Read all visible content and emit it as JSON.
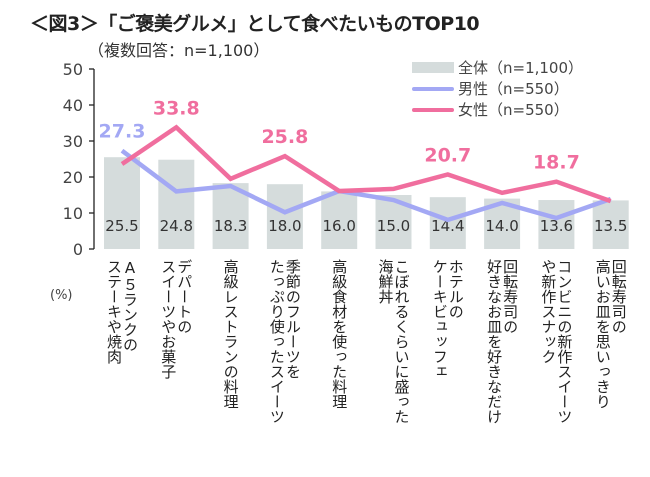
{
  "chart_data": {
    "type": "bar",
    "title": "＜図3＞「ご褒美グルメ」として食べたいものTOP10",
    "subtitle": "（複数回答：n=1,100）",
    "ylabel": "(%)",
    "xlabel": "",
    "ylim": [
      0,
      50
    ],
    "yticks": [
      0,
      10,
      20,
      30,
      40,
      50
    ],
    "grid": false,
    "legend_position": "top-right",
    "categories": [
      "A５ランクのステーキや焼肉",
      "デパートのスイーツやお菓子",
      "高級レストランの料理",
      "季節のフルーツをたっぷり使ったスイーツ",
      "高級食材を使った料理",
      "こぼれるくらいに盛った海鮮丼",
      "ホテルのケーキビュッフェ",
      "回転寿司の好きなお皿を好きなだけ",
      "コンビニの新作スイーツや新作スナック",
      "回転寿司の高いお皿を思いっきり"
    ],
    "category_lines": [
      [
        "A５ランクの",
        "ステーキや焼肉"
      ],
      [
        "デパートの",
        "スイーツやお菓子"
      ],
      [
        "高級レストランの料理"
      ],
      [
        "季節のフルーツを",
        "たっぷり使ったスイーツ"
      ],
      [
        "高級食材を使った料理"
      ],
      [
        "こぼれるくらいに盛った",
        "海鮮丼"
      ],
      [
        "ホテルの",
        "ケーキビュッフェ"
      ],
      [
        "回転寿司の",
        "好きなお皿を好きなだけ"
      ],
      [
        "コンビニの新作スイーツ",
        "や新作スナック"
      ],
      [
        "回転寿司の",
        "高いお皿を思いっきり"
      ]
    ],
    "series": [
      {
        "name": "全体（n=1,100）",
        "type": "bar",
        "color": "#d5dcdc",
        "values": [
          25.5,
          24.8,
          18.3,
          18.0,
          16.0,
          15.0,
          14.4,
          14.0,
          13.6,
          13.5
        ],
        "labels": [
          "25.5",
          "24.8",
          "18.3",
          "18.0",
          "16.0",
          "15.0",
          "14.4",
          "14.0",
          "13.6",
          "13.5"
        ]
      },
      {
        "name": "男性（n=550）",
        "type": "line",
        "color": "#a3a8f4",
        "values": [
          27.3,
          16.0,
          17.5,
          10.2,
          16.1,
          13.6,
          8.1,
          12.8,
          8.6,
          13.9
        ],
        "annotations": [
          {
            "index": 0,
            "text": "27.3"
          }
        ]
      },
      {
        "name": "女性（n=550）",
        "type": "line",
        "color": "#f06e9e",
        "values": [
          23.6,
          33.8,
          19.5,
          25.8,
          16.1,
          16.7,
          20.7,
          15.6,
          18.7,
          13.3
        ],
        "annotations": [
          {
            "index": 1,
            "text": "33.8"
          },
          {
            "index": 3,
            "text": "25.8"
          },
          {
            "index": 6,
            "text": "20.7"
          },
          {
            "index": 8,
            "text": "18.7"
          }
        ]
      }
    ]
  }
}
